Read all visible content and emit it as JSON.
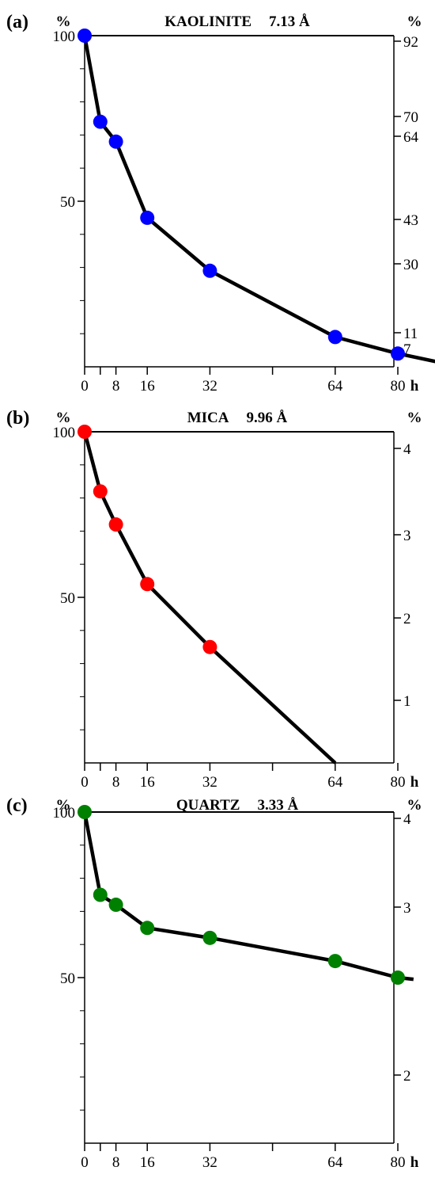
{
  "x_unit": "h",
  "chart_data": [
    {
      "type": "line",
      "panel_label": "(a)",
      "title": "KAOLINITE",
      "title_value": "7.13 Å",
      "ylabel_left": "%",
      "ylabel_right": "%",
      "xlabel": "h",
      "xlim": [
        0,
        94
      ],
      "ylim_left": [
        0,
        100
      ],
      "left_ticks": [
        "100",
        "50"
      ],
      "left_tick_values": [
        100,
        50
      ],
      "right_ticks": [
        "92",
        "70",
        "64",
        "43",
        "30",
        "11",
        "7"
      ],
      "right_tick_values": [
        92,
        70,
        64,
        43,
        30,
        11,
        7
      ],
      "x_tick_labels": [
        "0",
        "8",
        "16",
        "32",
        "64",
        "80"
      ],
      "x_tick_values": [
        0,
        8,
        16,
        32,
        64,
        80
      ],
      "marker_color": "#0000ff",
      "series": [
        {
          "x": [
            0,
            4,
            8,
            16,
            32,
            64,
            80
          ],
          "y": [
            100,
            74,
            68,
            45,
            29,
            9,
            4
          ]
        }
      ],
      "line_extension": {
        "x": 94,
        "y": 0.5
      }
    },
    {
      "type": "line",
      "panel_label": "(b)",
      "title": "MICA",
      "title_value": "9.96 Å",
      "ylabel_left": "%",
      "ylabel_right": "%",
      "xlabel": "h",
      "xlim": [
        0,
        94
      ],
      "ylim_left": [
        0,
        100
      ],
      "left_ticks": [
        "100",
        "50"
      ],
      "left_tick_values": [
        100,
        50
      ],
      "right_ticks": [
        "4",
        "3",
        "2",
        "1"
      ],
      "right_tick_values": [
        4,
        3,
        2,
        1
      ],
      "x_tick_labels": [
        "0",
        "8",
        "16",
        "32",
        "64",
        "80"
      ],
      "x_tick_values": [
        0,
        8,
        16,
        32,
        64,
        80
      ],
      "marker_color": "#ff0000",
      "series": [
        {
          "x": [
            0,
            4,
            8,
            16,
            32
          ],
          "y": [
            100,
            82,
            72,
            54,
            35
          ]
        }
      ],
      "line_extension": {
        "x": 64,
        "y": 0
      }
    },
    {
      "type": "line",
      "panel_label": "(c)",
      "title": "QUARTZ",
      "title_value": "3.33 Å",
      "ylabel_left": "%",
      "ylabel_right": "%",
      "xlabel": "h",
      "xlim": [
        0,
        94
      ],
      "ylim_left": [
        0,
        100
      ],
      "left_ticks": [
        "100",
        "50"
      ],
      "left_tick_values": [
        100,
        50
      ],
      "right_ticks": [
        "4",
        "3",
        "2"
      ],
      "right_tick_values": [
        4,
        3,
        2
      ],
      "x_tick_labels": [
        "0",
        "8",
        "16",
        "32",
        "64",
        "80"
      ],
      "x_tick_values": [
        0,
        8,
        16,
        32,
        64,
        80
      ],
      "marker_color": "#008000",
      "series": [
        {
          "x": [
            0,
            4,
            8,
            16,
            32,
            64,
            80
          ],
          "y": [
            100,
            75,
            72,
            65,
            62,
            55,
            50
          ]
        }
      ],
      "line_extension": {
        "x": 84,
        "y": 49.5
      }
    }
  ]
}
